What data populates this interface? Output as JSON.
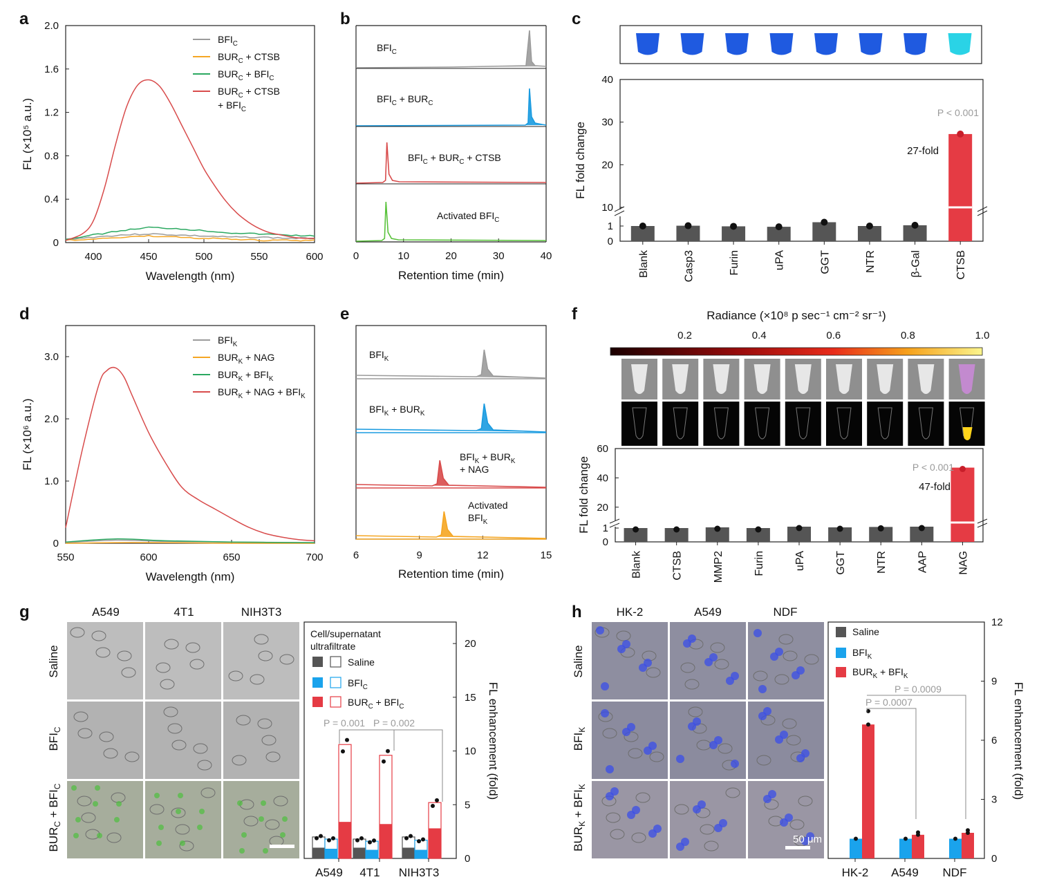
{
  "colors": {
    "gray": "#9b9b9b",
    "orange": "#f5a623",
    "green": "#2aa860",
    "red": "#d84b4b",
    "blue": "#1a9be0",
    "bar_gray": "#555555",
    "bar_red": "#e53b44",
    "bar_blue": "#1aa3ec",
    "lime": "#58c23a",
    "pgray": "#9a9a9a"
  },
  "chart_data": [
    {
      "panel": "a",
      "type": "line",
      "xlabel": "Wavelength (nm)",
      "ylabel": "FL (×10⁵ a.u.)",
      "xlim": [
        375,
        600
      ],
      "ylim": [
        0,
        2.0
      ],
      "xticks": [
        "400",
        "450",
        "500",
        "550",
        "600"
      ],
      "yticks": [
        "0",
        "0.4",
        "0.8",
        "1.2",
        "1.6",
        "2.0"
      ],
      "legend_position": "top-right",
      "series": [
        {
          "name": "BFI_C",
          "color": "gray",
          "x": [
            375,
            400,
            425,
            450,
            475,
            500,
            525,
            550,
            575,
            600
          ],
          "y": [
            0.03,
            0.05,
            0.07,
            0.08,
            0.07,
            0.06,
            0.05,
            0.05,
            0.04,
            0.04
          ]
        },
        {
          "name": "BUR_C + CTSB",
          "color": "orange",
          "x": [
            375,
            400,
            425,
            450,
            475,
            500,
            525,
            550,
            575,
            600
          ],
          "y": [
            0.02,
            0.03,
            0.05,
            0.06,
            0.05,
            0.04,
            0.03,
            0.02,
            0.02,
            0.02
          ]
        },
        {
          "name": "BUR_C + BFI_C",
          "color": "green",
          "x": [
            375,
            400,
            425,
            450,
            475,
            500,
            525,
            550,
            575,
            600
          ],
          "y": [
            0.03,
            0.07,
            0.11,
            0.14,
            0.13,
            0.11,
            0.09,
            0.08,
            0.07,
            0.06
          ]
        },
        {
          "name": "BUR_C + CTSB + BFI_C",
          "color": "red",
          "x": [
            375,
            390,
            400,
            410,
            420,
            430,
            440,
            450,
            460,
            470,
            480,
            490,
            500,
            510,
            520,
            530,
            540,
            550,
            560,
            570,
            580,
            590,
            600
          ],
          "y": [
            0.02,
            0.08,
            0.2,
            0.5,
            0.9,
            1.25,
            1.45,
            1.5,
            1.44,
            1.28,
            1.08,
            0.88,
            0.68,
            0.52,
            0.38,
            0.27,
            0.19,
            0.13,
            0.09,
            0.07,
            0.05,
            0.04,
            0.04
          ]
        }
      ]
    },
    {
      "panel": "b",
      "type": "line",
      "xlabel": "Retention time (min)",
      "xlim": [
        0,
        40
      ],
      "xticks": [
        "0",
        "10",
        "20",
        "30",
        "40"
      ],
      "traces": [
        {
          "name": "BFI_C",
          "color": "gray",
          "peak_x": 36.5
        },
        {
          "name": "BFI_C + BUR_C",
          "color": "blue",
          "peak_x": 36.5
        },
        {
          "name": "BFI_C + BUR_C + CTSB",
          "color": "red",
          "peak_x": 6.5
        },
        {
          "name": "Activated BFI_C",
          "color": "lime",
          "peak_x": 6.3
        }
      ]
    },
    {
      "panel": "c",
      "type": "bar",
      "ylabel": "FL fold change",
      "yticks": [
        "0",
        "1",
        "10",
        "20",
        "30",
        "40"
      ],
      "categories": [
        "Blank",
        "Casp3",
        "Furin",
        "uPA",
        "GGT",
        "NTR",
        "β-Gal",
        "CTSB"
      ],
      "values": [
        1.0,
        1.02,
        0.98,
        0.95,
        1.25,
        1.0,
        1.05,
        27.2
      ],
      "annotations": [
        "P < 0.001",
        "27-fold"
      ]
    },
    {
      "panel": "d",
      "type": "line",
      "xlabel": "Wavelength (nm)",
      "ylabel": "FL (×10⁶ a.u.)",
      "xlim": [
        550,
        700
      ],
      "ylim": [
        0,
        3.5
      ],
      "xticks": [
        "550",
        "600",
        "650",
        "700"
      ],
      "yticks": [
        "0",
        "1.0",
        "2.0",
        "3.0"
      ],
      "legend_position": "top-right",
      "series": [
        {
          "name": "BFI_K",
          "color": "gray",
          "x": [
            550,
            580,
            610,
            650,
            700
          ],
          "y": [
            0.01,
            0.05,
            0.03,
            0.02,
            0.01
          ]
        },
        {
          "name": "BUR_K + NAG",
          "color": "orange",
          "x": [
            550,
            580,
            610,
            650,
            700
          ],
          "y": [
            0.0,
            0.01,
            0.01,
            0.0,
            0.0
          ]
        },
        {
          "name": "BUR_K + BFI_K",
          "color": "green",
          "x": [
            550,
            580,
            610,
            650,
            700
          ],
          "y": [
            0.02,
            0.07,
            0.04,
            0.02,
            0.01
          ]
        },
        {
          "name": "BUR_K + NAG + BFI_K",
          "color": "red",
          "x": [
            550,
            560,
            570,
            575,
            580,
            585,
            590,
            600,
            610,
            620,
            630,
            640,
            650,
            660,
            670,
            680,
            690,
            700
          ],
          "y": [
            0.25,
            1.5,
            2.55,
            2.78,
            2.82,
            2.68,
            2.38,
            1.78,
            1.3,
            0.9,
            0.7,
            0.55,
            0.4,
            0.26,
            0.16,
            0.1,
            0.06,
            0.04
          ]
        }
      ]
    },
    {
      "panel": "e",
      "type": "line",
      "xlabel": "Retention time (min)",
      "xlim": [
        6,
        15
      ],
      "xticks": [
        "6",
        "9",
        "12",
        "15"
      ],
      "traces": [
        {
          "name": "BFI_K",
          "color": "gray",
          "peak_x": 12.1
        },
        {
          "name": "BFI_K + BUR_K",
          "color": "blue",
          "peak_x": 12.1
        },
        {
          "name": "BFI_K + BUR_K + NAG",
          "color": "red",
          "peak_x": 10.0
        },
        {
          "name": "Activated BFI_K",
          "color": "orange",
          "peak_x": 10.2
        }
      ]
    },
    {
      "panel": "f",
      "type": "bar",
      "ylabel": "FL fold change",
      "yticks": [
        "0",
        "1",
        "20",
        "40",
        "60"
      ],
      "colorbar_title": "Radiance (×10⁸ p sec⁻¹ cm⁻² sr⁻¹)",
      "colorbar_ticks": [
        "0.2",
        "0.4",
        "0.6",
        "0.8",
        "1.0"
      ],
      "categories": [
        "Blank",
        "CTSB",
        "MMP2",
        "Furin",
        "uPA",
        "GGT",
        "NTR",
        "AAP",
        "NAG"
      ],
      "values": [
        1.0,
        1.0,
        1.05,
        1.0,
        1.1,
        1.05,
        1.08,
        1.1,
        47.0
      ],
      "annotations": [
        "P < 0.001",
        "47-fold"
      ]
    },
    {
      "panel": "g",
      "type": "bar",
      "ylabel": "FL enhancement (fold)",
      "ylim": [
        0,
        22
      ],
      "yticks": [
        "0",
        "5",
        "10",
        "15",
        "20"
      ],
      "legend_title": "Cell/supernatant ultrafiltrate",
      "categories": [
        "A549",
        "4T1",
        "NIH3T3"
      ],
      "series": [
        {
          "name": "Saline",
          "cell": [
            1.0,
            1.0,
            1.0
          ],
          "supernatant": [
            2.0,
            1.8,
            2.0
          ]
        },
        {
          "name": "BFI_C",
          "cell": [
            0.9,
            0.8,
            0.8
          ],
          "supernatant": [
            1.8,
            1.6,
            1.7
          ]
        },
        {
          "name": "BUR_C + BFI_C",
          "cell": [
            3.4,
            3.2,
            2.8
          ],
          "supernatant": [
            10.6,
            9.6,
            5.2
          ]
        }
      ],
      "annotations": [
        "P = 0.001",
        "P = 0.002"
      ]
    },
    {
      "panel": "h",
      "type": "bar",
      "ylabel": "FL enhancement (fold)",
      "ylim": [
        0,
        12
      ],
      "yticks": [
        "0",
        "3",
        "6",
        "9",
        "12"
      ],
      "categories": [
        "HK-2",
        "A549",
        "NDF"
      ],
      "series": [
        {
          "name": "Saline",
          "values": [
            0.0,
            0.0,
            0.0
          ]
        },
        {
          "name": "BFI_K",
          "values": [
            1.0,
            1.0,
            1.0
          ]
        },
        {
          "name": "BUR_K + BFI_K",
          "values": [
            6.8,
            1.2,
            1.3
          ]
        }
      ],
      "annotations": [
        "P = 0.0007",
        "P = 0.0009"
      ]
    }
  ],
  "labels": {
    "panels": [
      "a",
      "b",
      "c",
      "d",
      "e",
      "f",
      "g",
      "h"
    ],
    "g_cols": [
      "A549",
      "4T1",
      "NIH3T3"
    ],
    "g_rows": [
      "Saline",
      "BFI_C",
      "BUR_C + BFI_C"
    ],
    "h_cols": [
      "HK-2",
      "A549",
      "NDF"
    ],
    "h_rows": [
      "Saline",
      "BFI_K",
      "BUR_K + BFI_K"
    ],
    "scale_bar": "50 μm"
  }
}
